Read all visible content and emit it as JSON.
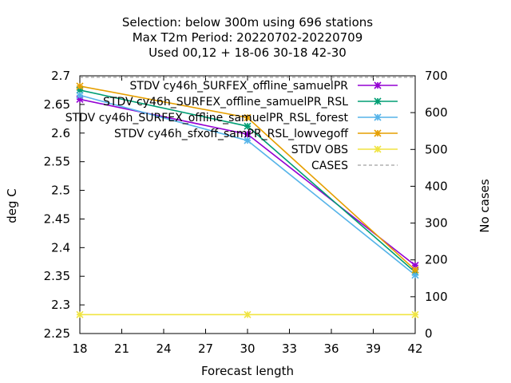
{
  "chart_data": {
    "type": "line",
    "title_lines": [
      "Selection: below 300m using   696 stations",
      "Max T2m   Period: 20220702-20220709",
      "Used  00,12  + 18-06 30-18 42-30"
    ],
    "xlabel": "Forecast length",
    "ylabel": "deg C",
    "y2label": "No cases",
    "x": [
      18,
      30,
      42
    ],
    "xlim": [
      18,
      42
    ],
    "xticks": [
      "18",
      "21",
      "24",
      "27",
      "30",
      "33",
      "36",
      "39",
      "42"
    ],
    "ylim": [
      2.25,
      2.7
    ],
    "yticks": [
      "2.25",
      "2.3",
      "2.35",
      "2.4",
      "2.45",
      "2.5",
      "2.55",
      "2.6",
      "2.65",
      "2.7"
    ],
    "y2lim": [
      0,
      700
    ],
    "y2ticks": [
      "0",
      "100",
      "200",
      "300",
      "400",
      "500",
      "600",
      "700"
    ],
    "grid": false,
    "legend_position": "top-right",
    "series": [
      {
        "name": "STDV cy46h_SURFEX_offline_samuelPR",
        "color": "#9400d3",
        "values": [
          2.659,
          2.598,
          2.369
        ],
        "axis": "y"
      },
      {
        "name": "STDV cy46h_SURFEX_offline_samuelPR_RSL",
        "color": "#009e73",
        "values": [
          2.675,
          2.612,
          2.357
        ],
        "axis": "y"
      },
      {
        "name": "STDV cy46h_SURFEX_offline_samuelPR_RSL_forest",
        "color": "#56b4e9",
        "values": [
          2.666,
          2.587,
          2.352
        ],
        "axis": "y"
      },
      {
        "name": "STDV cy46h_sfxoff_samPR_RSL_lowvegoff",
        "color": "#e69f00",
        "values": [
          2.682,
          2.627,
          2.361
        ],
        "axis": "y"
      },
      {
        "name": "STDV OBS",
        "color": "#f0e442",
        "values": [
          2.283,
          2.283,
          2.283
        ],
        "axis": "y"
      },
      {
        "name": "CASES",
        "color": "#888888",
        "values": [
          696,
          696,
          696
        ],
        "axis": "y2"
      }
    ]
  }
}
